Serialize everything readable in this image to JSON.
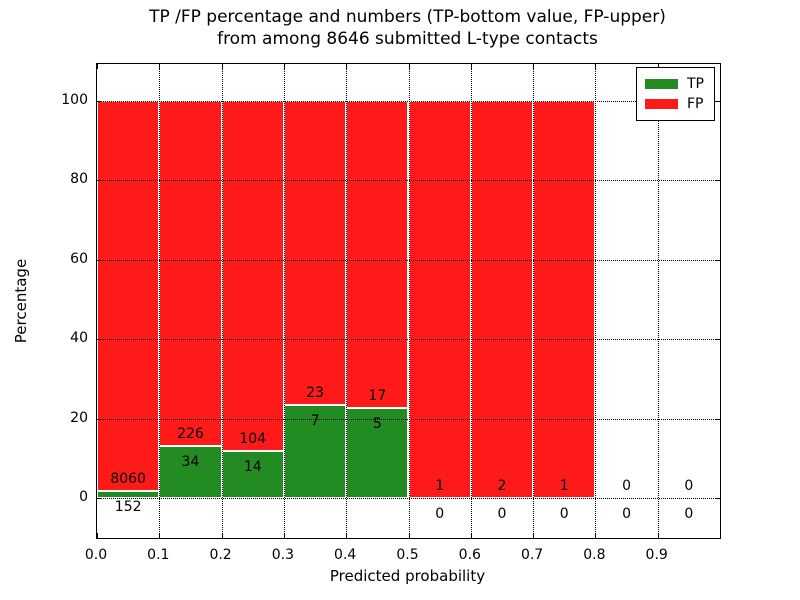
{
  "title": {
    "line1": "TP /FP percentage and numbers (TP-bottom value, FP-upper)",
    "line2": "from among 8646 submitted L-type contacts"
  },
  "axes": {
    "x_label": "Predicted probability",
    "y_label": "Percentage",
    "x_tick_labels": [
      "0.0",
      "0.1",
      "0.2",
      "0.3",
      "0.4",
      "0.5",
      "0.6",
      "0.7",
      "0.8",
      "0.9"
    ],
    "y_tick_labels": [
      "0",
      "20",
      "40",
      "60",
      "80",
      "100"
    ]
  },
  "legend": {
    "items": [
      {
        "label": "TP",
        "color": "#228b22"
      },
      {
        "label": "FP",
        "color": "#ff1a1a"
      }
    ]
  },
  "colors": {
    "tp_green": "#228b22",
    "fp_red": "#ff1a1a",
    "grid": "#000000",
    "background": "#ffffff"
  },
  "chart_data": {
    "type": "bar",
    "stacked": true,
    "title": "TP /FP percentage and numbers (TP-bottom value, FP-upper) from among 8646 submitted L-type contacts",
    "xlabel": "Predicted probability",
    "ylabel": "Percentage",
    "xlim": [
      0.0,
      1.0
    ],
    "ylim": [
      -10,
      110
    ],
    "grid": true,
    "legend_position": "upper right",
    "total_submitted": 8646,
    "bin_edges": [
      0.0,
      0.1,
      0.2,
      0.3,
      0.4,
      0.5,
      0.6,
      0.7,
      0.8,
      0.9,
      1.0
    ],
    "categories": [
      "0.0-0.1",
      "0.1-0.2",
      "0.2-0.3",
      "0.3-0.4",
      "0.4-0.5",
      "0.5-0.6",
      "0.6-0.7",
      "0.7-0.8",
      "0.8-0.9",
      "0.9-1.0"
    ],
    "series": [
      {
        "name": "TP",
        "counts": [
          152,
          34,
          14,
          7,
          5,
          0,
          0,
          0,
          0,
          0
        ],
        "percent": [
          1.85,
          13.08,
          11.86,
          23.33,
          22.73,
          0,
          0,
          0,
          0,
          0
        ]
      },
      {
        "name": "FP",
        "counts": [
          8060,
          226,
          104,
          23,
          17,
          1,
          2,
          1,
          0,
          0
        ],
        "percent": [
          98.15,
          86.92,
          88.14,
          76.67,
          77.27,
          100,
          100,
          100,
          0,
          0
        ]
      }
    ]
  }
}
